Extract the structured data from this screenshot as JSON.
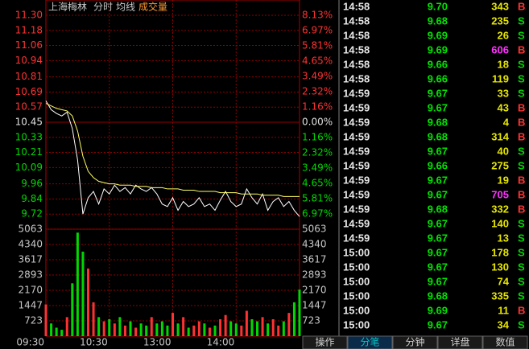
{
  "chart_data": [
    {
      "type": "line",
      "title": "上海梅林",
      "subtitle": "分时",
      "categories": [
        "09:30",
        null,
        null,
        null,
        null,
        null,
        null,
        null,
        null,
        null,
        null,
        null,
        "10:30",
        null,
        null,
        null,
        null,
        null,
        null,
        null,
        null,
        null,
        null,
        null,
        "13:00",
        null,
        null,
        null,
        null,
        null,
        null,
        null,
        null,
        null,
        null,
        null,
        "14:00",
        null,
        null,
        null,
        null,
        null,
        null,
        null,
        null,
        null,
        null,
        null,
        null
      ],
      "series": [
        {
          "color": "#ffffff",
          "values": [
            10.62,
            10.55,
            10.52,
            10.5,
            10.53,
            10.4,
            10.15,
            9.72,
            9.85,
            9.9,
            9.8,
            9.92,
            9.88,
            9.95,
            9.9,
            9.93,
            9.88,
            9.95,
            9.92,
            9.9,
            9.93,
            9.88,
            9.8,
            9.78,
            9.85,
            9.75,
            9.82,
            9.78,
            9.8,
            9.85,
            9.78,
            9.8,
            9.75,
            9.83,
            9.9,
            9.82,
            9.78,
            9.8,
            9.92,
            9.85,
            9.8,
            9.88,
            9.75,
            9.82,
            9.85,
            9.78,
            9.82,
            9.75,
            9.7
          ]
        },
        {
          "name": "均线",
          "color": "#ffff66",
          "values": [
            10.6,
            10.58,
            10.56,
            10.55,
            10.54,
            10.5,
            10.38,
            10.18,
            10.06,
            10.01,
            9.98,
            9.97,
            9.96,
            9.96,
            9.95,
            9.95,
            9.95,
            9.94,
            9.94,
            9.94,
            9.93,
            9.93,
            9.93,
            9.92,
            9.92,
            9.92,
            9.91,
            9.91,
            9.91,
            9.9,
            9.9,
            9.9,
            9.9,
            9.89,
            9.89,
            9.89,
            9.89,
            9.88,
            9.88,
            9.88,
            9.88,
            9.87,
            9.87,
            9.87,
            9.87,
            9.86,
            9.86,
            9.86,
            9.86
          ]
        }
      ],
      "ylim": [
        9.6,
        11.3
      ],
      "yticks": [
        {
          "value": 11.3,
          "label": "11.30"
        },
        {
          "value": 11.18,
          "label": "11.18"
        },
        {
          "value": 11.06,
          "label": "11.06"
        },
        {
          "value": 10.94,
          "label": "10.94"
        },
        {
          "value": 10.81,
          "label": "10.81"
        },
        {
          "value": 10.69,
          "label": "10.69"
        },
        {
          "value": 10.57,
          "label": "10.57"
        },
        {
          "value": 10.45,
          "label": "10.45"
        },
        {
          "value": 10.33,
          "label": "10.33"
        },
        {
          "value": 10.21,
          "label": "10.21"
        },
        {
          "value": 10.09,
          "label": "10.09"
        },
        {
          "value": 9.96,
          "label": "9.96"
        },
        {
          "value": 9.84,
          "label": "9.84"
        },
        {
          "value": 9.72,
          "label": "9.72"
        }
      ],
      "y2lim": [
        -8.13,
        8.13
      ],
      "y2ticks": [
        {
          "value": 8.13,
          "label": "8.13%"
        },
        {
          "value": 6.97,
          "label": "6.97%"
        },
        {
          "value": 5.81,
          "label": "5.81%"
        },
        {
          "value": 4.65,
          "label": "4.65%"
        },
        {
          "value": 3.49,
          "label": "3.49%"
        },
        {
          "value": 2.32,
          "label": "2.32%"
        },
        {
          "value": 1.16,
          "label": "1.16%"
        },
        {
          "value": 0,
          "label": "0.00%"
        },
        {
          "value": -1.16,
          "label": "1.16%"
        },
        {
          "value": -2.32,
          "label": "2.32%"
        },
        {
          "value": -3.49,
          "label": "3.49%"
        },
        {
          "value": -4.65,
          "label": "4.65%"
        },
        {
          "value": -5.81,
          "label": "5.81%"
        },
        {
          "value": -6.97,
          "label": "6.97%"
        }
      ],
      "grid": true
    },
    {
      "type": "bar",
      "title": "成交量",
      "values": [
        1500,
        600,
        400,
        300,
        900,
        2500,
        4900,
        4000,
        3200,
        1600,
        900,
        700,
        800,
        600,
        900,
        500,
        700,
        400,
        600,
        500,
        900,
        600,
        700,
        500,
        1100,
        600,
        900,
        400,
        500,
        700,
        600,
        400,
        500,
        800,
        1000,
        700,
        600,
        500,
        1200,
        800,
        700,
        900,
        600,
        800,
        500,
        700,
        1100,
        1600,
        2200
      ],
      "colors": {
        "up": "#ff3232",
        "down": "#00d800"
      },
      "ylim": [
        0,
        5063
      ],
      "yticks": [
        723,
        1447,
        2170,
        2893,
        3617,
        4340,
        5063
      ],
      "grid": true
    }
  ],
  "ticks": {
    "rows": [
      [
        "14:58",
        "9.70",
        343,
        "B"
      ],
      [
        "14:58",
        "9.68",
        235,
        "S"
      ],
      [
        "14:58",
        "9.69",
        26,
        "S"
      ],
      [
        "14:58",
        "9.69",
        606,
        "B"
      ],
      [
        "14:58",
        "9.66",
        18,
        "S"
      ],
      [
        "14:58",
        "9.66",
        119,
        "S"
      ],
      [
        "14:59",
        "9.67",
        33,
        "S"
      ],
      [
        "14:59",
        "9.67",
        43,
        "B"
      ],
      [
        "14:59",
        "9.68",
        4,
        "B"
      ],
      [
        "14:59",
        "9.68",
        314,
        "B"
      ],
      [
        "14:59",
        "9.67",
        40,
        "S"
      ],
      [
        "14:59",
        "9.66",
        275,
        "S"
      ],
      [
        "14:59",
        "9.67",
        19,
        "B"
      ],
      [
        "14:59",
        "9.67",
        705,
        "B"
      ],
      [
        "14:59",
        "9.68",
        332,
        "B"
      ],
      [
        "14:59",
        "9.67",
        140,
        "S"
      ],
      [
        "14:59",
        "9.67",
        13,
        "S"
      ],
      [
        "15:00",
        "9.67",
        178,
        "S"
      ],
      [
        "15:00",
        "9.67",
        130,
        "S"
      ],
      [
        "15:00",
        "9.67",
        74,
        "S"
      ],
      [
        "15:00",
        "9.68",
        335,
        "S"
      ],
      [
        "15:00",
        "9.69",
        11,
        "B"
      ],
      [
        "15:00",
        "9.67",
        34,
        "S"
      ]
    ]
  },
  "tabs": {
    "items": [
      "操作",
      "分笔",
      "分钟",
      "详盘",
      "数值"
    ],
    "active": 1
  }
}
